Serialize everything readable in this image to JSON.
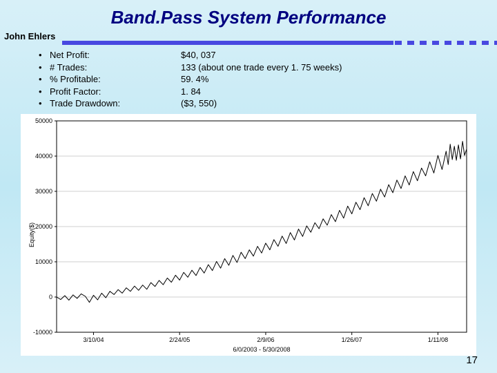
{
  "title": "Band.Pass System Performance",
  "author": "John Ehlers",
  "pagenum": "17",
  "bullets": [
    {
      "label": "Net Profit:",
      "value": "$40, 037"
    },
    {
      "label": "# Trades:",
      "value": "133 (about one trade every 1. 75 weeks)"
    },
    {
      "label": "% Profitable:",
      "value": "59. 4%"
    },
    {
      "label": "Profit Factor:",
      "value": "1. 84"
    },
    {
      "label": "Trade Drawdown:",
      "value": "($3, 550)"
    }
  ],
  "chart": {
    "type": "line",
    "background_color": "#ffffff",
    "grid_color": "#cfcfcf",
    "axis_color": "#000000",
    "line_color": "#000000",
    "line_width": 1,
    "tick_fontsize": 9,
    "ylabel": "Equity($)",
    "ylim": [
      -10000,
      50000
    ],
    "ytick_step": 10000,
    "yticks": [
      {
        "v": -10000,
        "label": "-10000"
      },
      {
        "v": 0,
        "label": "0"
      },
      {
        "v": 10000,
        "label": "10000"
      },
      {
        "v": 20000,
        "label": "20000"
      },
      {
        "v": 30000,
        "label": "30000"
      },
      {
        "v": 40000,
        "label": "40000"
      },
      {
        "v": 50000,
        "label": "50000"
      }
    ],
    "xlim": [
      0,
      1
    ],
    "xticks": [
      {
        "t": 0.09,
        "label": "3/10/04"
      },
      {
        "t": 0.3,
        "label": "2/24/05"
      },
      {
        "t": 0.51,
        "label": "2/9/06"
      },
      {
        "t": 0.72,
        "label": "1/26/07"
      },
      {
        "t": 0.93,
        "label": "1/11/08"
      }
    ],
    "footer": "6/0/2003 - 5/30/2008",
    "series": [
      {
        "t": 0.0,
        "v": 0
      },
      {
        "t": 0.01,
        "v": -700
      },
      {
        "t": 0.02,
        "v": 400
      },
      {
        "t": 0.03,
        "v": -900
      },
      {
        "t": 0.04,
        "v": 600
      },
      {
        "t": 0.05,
        "v": -400
      },
      {
        "t": 0.06,
        "v": 900
      },
      {
        "t": 0.07,
        "v": 200
      },
      {
        "t": 0.08,
        "v": -1500
      },
      {
        "t": 0.09,
        "v": 500
      },
      {
        "t": 0.1,
        "v": -800
      },
      {
        "t": 0.11,
        "v": 1100
      },
      {
        "t": 0.12,
        "v": -200
      },
      {
        "t": 0.13,
        "v": 1600
      },
      {
        "t": 0.14,
        "v": 700
      },
      {
        "t": 0.15,
        "v": 2100
      },
      {
        "t": 0.16,
        "v": 1100
      },
      {
        "t": 0.17,
        "v": 2600
      },
      {
        "t": 0.18,
        "v": 1600
      },
      {
        "t": 0.19,
        "v": 3100
      },
      {
        "t": 0.2,
        "v": 1900
      },
      {
        "t": 0.21,
        "v": 3400
      },
      {
        "t": 0.22,
        "v": 2200
      },
      {
        "t": 0.23,
        "v": 4100
      },
      {
        "t": 0.24,
        "v": 3000
      },
      {
        "t": 0.25,
        "v": 4700
      },
      {
        "t": 0.26,
        "v": 3500
      },
      {
        "t": 0.27,
        "v": 5400
      },
      {
        "t": 0.28,
        "v": 4200
      },
      {
        "t": 0.29,
        "v": 6200
      },
      {
        "t": 0.3,
        "v": 4800
      },
      {
        "t": 0.31,
        "v": 7000
      },
      {
        "t": 0.32,
        "v": 5600
      },
      {
        "t": 0.33,
        "v": 7600
      },
      {
        "t": 0.34,
        "v": 6100
      },
      {
        "t": 0.35,
        "v": 8400
      },
      {
        "t": 0.36,
        "v": 6800
      },
      {
        "t": 0.37,
        "v": 9200
      },
      {
        "t": 0.38,
        "v": 7500
      },
      {
        "t": 0.39,
        "v": 10100
      },
      {
        "t": 0.4,
        "v": 8200
      },
      {
        "t": 0.41,
        "v": 10900
      },
      {
        "t": 0.42,
        "v": 9000
      },
      {
        "t": 0.43,
        "v": 11800
      },
      {
        "t": 0.44,
        "v": 9800
      },
      {
        "t": 0.45,
        "v": 12700
      },
      {
        "t": 0.46,
        "v": 10900
      },
      {
        "t": 0.47,
        "v": 13400
      },
      {
        "t": 0.48,
        "v": 11600
      },
      {
        "t": 0.49,
        "v": 14400
      },
      {
        "t": 0.5,
        "v": 12500
      },
      {
        "t": 0.51,
        "v": 15300
      },
      {
        "t": 0.52,
        "v": 13400
      },
      {
        "t": 0.53,
        "v": 16300
      },
      {
        "t": 0.54,
        "v": 14400
      },
      {
        "t": 0.55,
        "v": 17300
      },
      {
        "t": 0.56,
        "v": 15200
      },
      {
        "t": 0.57,
        "v": 18300
      },
      {
        "t": 0.58,
        "v": 16200
      },
      {
        "t": 0.59,
        "v": 19300
      },
      {
        "t": 0.6,
        "v": 17200
      },
      {
        "t": 0.61,
        "v": 20200
      },
      {
        "t": 0.62,
        "v": 18400
      },
      {
        "t": 0.63,
        "v": 21100
      },
      {
        "t": 0.64,
        "v": 19400
      },
      {
        "t": 0.65,
        "v": 22200
      },
      {
        "t": 0.66,
        "v": 20400
      },
      {
        "t": 0.67,
        "v": 23400
      },
      {
        "t": 0.68,
        "v": 21400
      },
      {
        "t": 0.69,
        "v": 24600
      },
      {
        "t": 0.7,
        "v": 22400
      },
      {
        "t": 0.71,
        "v": 25800
      },
      {
        "t": 0.72,
        "v": 23600
      },
      {
        "t": 0.73,
        "v": 26900
      },
      {
        "t": 0.74,
        "v": 24800
      },
      {
        "t": 0.75,
        "v": 28200
      },
      {
        "t": 0.76,
        "v": 25900
      },
      {
        "t": 0.77,
        "v": 29400
      },
      {
        "t": 0.78,
        "v": 27200
      },
      {
        "t": 0.79,
        "v": 30600
      },
      {
        "t": 0.8,
        "v": 28400
      },
      {
        "t": 0.81,
        "v": 31900
      },
      {
        "t": 0.82,
        "v": 29600
      },
      {
        "t": 0.83,
        "v": 33200
      },
      {
        "t": 0.84,
        "v": 30800
      },
      {
        "t": 0.85,
        "v": 34400
      },
      {
        "t": 0.86,
        "v": 31800
      },
      {
        "t": 0.87,
        "v": 35600
      },
      {
        "t": 0.88,
        "v": 33000
      },
      {
        "t": 0.89,
        "v": 36600
      },
      {
        "t": 0.9,
        "v": 34400
      },
      {
        "t": 0.91,
        "v": 38400
      },
      {
        "t": 0.92,
        "v": 35200
      },
      {
        "t": 0.93,
        "v": 40200
      },
      {
        "t": 0.94,
        "v": 36200
      },
      {
        "t": 0.95,
        "v": 41400
      },
      {
        "t": 0.955,
        "v": 37600
      },
      {
        "t": 0.96,
        "v": 43400
      },
      {
        "t": 0.965,
        "v": 39000
      },
      {
        "t": 0.97,
        "v": 42800
      },
      {
        "t": 0.975,
        "v": 38800
      },
      {
        "t": 0.98,
        "v": 43200
      },
      {
        "t": 0.985,
        "v": 39200
      },
      {
        "t": 0.99,
        "v": 44200
      },
      {
        "t": 0.995,
        "v": 40200
      },
      {
        "t": 1.0,
        "v": 42000
      }
    ]
  }
}
